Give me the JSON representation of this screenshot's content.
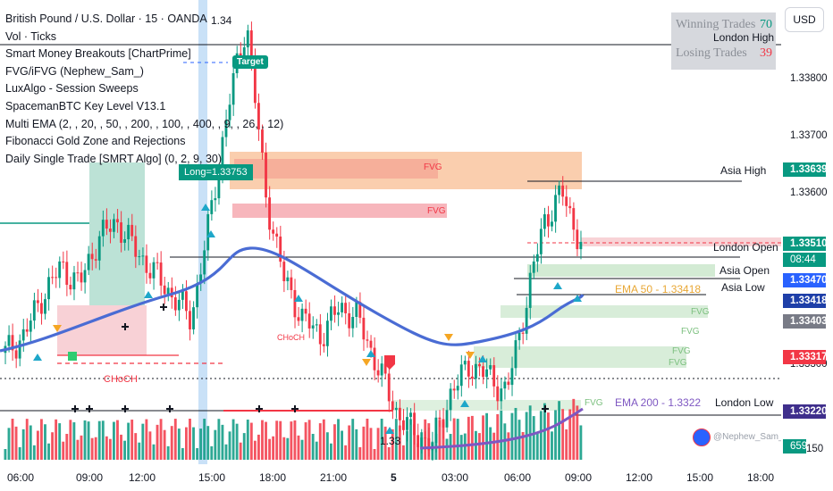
{
  "legend": {
    "title": "British Pound / U.S. Dollar · 15 · OANDA",
    "lines": [
      "Vol · Ticks",
      "Smart Money Breakouts [ChartPrime]",
      "FVG/iFVG (Nephew_Sam_)",
      "LuxAlgo - Session Sweeps",
      "SpacemanBTC Key Level V13.1",
      "Multi EMA (2, , 20, , 50, , 200, , 100, , 400, , 9, , 26, , 12)",
      "Fibonacci Gold Zone and Rejections",
      "Daily Single Trade [SMRT Algo] (0, 2, 9, 30)"
    ]
  },
  "stats": {
    "winning_label": "Winning Trades",
    "winning_value": "70",
    "losing_label": "Losing Trades",
    "losing_value": "39"
  },
  "currency_button": "USD",
  "price_axis": {
    "ticks": [
      "1.33800",
      "1.33700",
      "1.33600",
      "1.33300",
      "150"
    ],
    "tags": [
      {
        "text": "1.33639",
        "color": "#089981"
      },
      {
        "text": "1.33510",
        "color": "#089981"
      },
      {
        "text": "08:44",
        "color": "#089981"
      },
      {
        "text": "1.33470",
        "color": "#2962ff"
      },
      {
        "text": "1.33418",
        "color": "#1e3fa8"
      },
      {
        "text": "1.33403",
        "color": "#787b86"
      },
      {
        "text": "1.33317",
        "color": "#f23645"
      },
      {
        "text": "1.33220",
        "color": "#3f2f8c"
      },
      {
        "text": "659",
        "color": "#089981"
      }
    ]
  },
  "time_axis": [
    "06:00",
    "09:00",
    "12:00",
    "15:00",
    "18:00",
    "21:00",
    "5",
    "03:00",
    "06:00",
    "09:00",
    "12:00",
    "15:00",
    "18:00"
  ],
  "annotations": {
    "price_top": "1.34",
    "price_bottom": "1.33",
    "target": "Target",
    "long": "Long=1.33753",
    "choch_1": "CHoCH",
    "choch_2": "CHoCH",
    "london_high": "London High",
    "asia_high": "Asia High",
    "london_open": "London Open",
    "asia_open": "Asia Open",
    "asia_low": "Asia Low",
    "london_low": "London Low",
    "ema50": "EMA 50 - 1.33418",
    "ema200": "EMA 200 - 1.3322",
    "fvg": "FVG",
    "watermark": "@Nephew_Sam_"
  },
  "colors": {
    "bull": "#089981",
    "bear": "#f23645",
    "ema50": "#4a6cd4",
    "ema200": "#7e57c2",
    "fvg_bear": "#f7b6bc",
    "fvg_bull": "#c8e6c9",
    "orange": "#f5a56b"
  },
  "chart_data": {
    "type": "candlestick",
    "title": "British Pound / U.S. Dollar · 15 · OANDA",
    "x_ticks": [
      "06:00",
      "09:00",
      "12:00",
      "15:00",
      "18:00",
      "21:00",
      "5",
      "03:00",
      "06:00",
      "09:00",
      "12:00",
      "15:00",
      "18:00"
    ],
    "y_ticks": [
      1.338,
      1.337,
      1.336,
      1.333
    ],
    "close_path": [
      1.3332,
      1.3335,
      1.3342,
      1.3347,
      1.3344,
      1.3352,
      1.3355,
      1.335,
      1.3346,
      1.3342,
      1.3338,
      1.3355,
      1.3375,
      1.339,
      1.336,
      1.3345,
      1.3338,
      1.3335,
      1.334,
      1.3338,
      1.333,
      1.3322,
      1.3318,
      1.3316,
      1.3325,
      1.333,
      1.3328,
      1.3325,
      1.334,
      1.3355,
      1.336,
      1.3351
    ],
    "ema50_last": 1.33418,
    "ema200_last": 1.3322,
    "last_price": 1.3351
  }
}
